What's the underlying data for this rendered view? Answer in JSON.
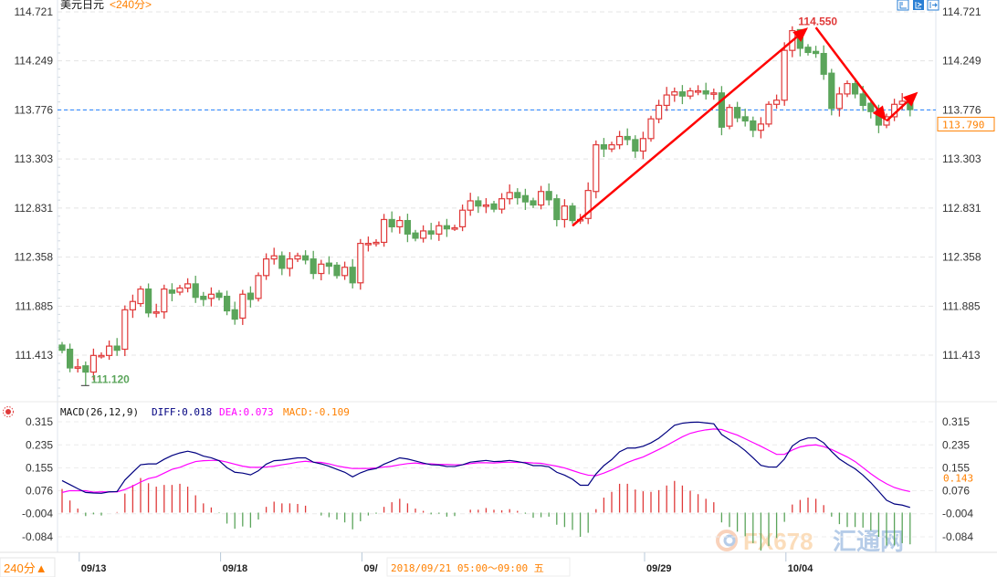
{
  "header": {
    "symbol": "美元日元",
    "period": "<240分>"
  },
  "toolbar_icons": [
    "zoom-range-icon",
    "draw-tool-icon",
    "exit-icon"
  ],
  "footer": {
    "period_button": "240分▲",
    "tooltip": "2018/09/21 05:00～09:00 五"
  },
  "watermark": "FX678 汇通网",
  "colors": {
    "up": "#e03a3a",
    "down": "#5ba55b",
    "diff": "#000080",
    "dea": "#ff00ff",
    "macd_label": "#ff8000",
    "price_line": "#1e7fff",
    "annotation": "#ff0000"
  },
  "chart_data": {
    "type": "candlestick",
    "title": "美元日元 <240分>",
    "y_ticks": [
      "114.721",
      "114.249",
      "113.776",
      "113.303",
      "112.831",
      "112.358",
      "111.885",
      "111.413"
    ],
    "ylim": [
      111.413,
      114.721
    ],
    "x_tick_labels": [
      {
        "label": "09/13",
        "index": 3
      },
      {
        "label": "09/18",
        "index": 21
      },
      {
        "label": "09/",
        "index": 39
      },
      {
        "label": "09/29",
        "index": 75
      },
      {
        "label": "10/04",
        "index": 93
      }
    ],
    "reference_line": {
      "value": "113.776"
    },
    "last_price": "113.790",
    "high_label": {
      "text": "114.550",
      "index": 94,
      "value": 114.55
    },
    "low_label": {
      "text": "111.120",
      "index": 3,
      "value": 111.12
    },
    "annotations": [
      {
        "type": "arrow",
        "from": {
          "index": 65,
          "value": 112.66
        },
        "to": {
          "index": 95,
          "value": 114.57
        }
      },
      {
        "type": "arrow",
        "from": {
          "index": 96,
          "value": 114.57
        },
        "to": {
          "index": 105,
          "value": 113.67
        }
      },
      {
        "type": "arrow",
        "from": {
          "index": 105,
          "value": 113.67
        },
        "to": {
          "index": 109,
          "value": 113.95
        }
      }
    ],
    "candles_oc": [
      [
        111.51,
        111.46
      ],
      [
        111.47,
        111.29
      ],
      [
        111.3,
        111.3
      ],
      [
        111.31,
        111.25
      ],
      [
        111.25,
        111.41
      ],
      [
        111.41,
        111.41
      ],
      [
        111.41,
        111.5
      ],
      [
        111.5,
        111.46
      ],
      [
        111.47,
        111.85
      ],
      [
        111.85,
        111.93
      ],
      [
        111.91,
        112.05
      ],
      [
        112.05,
        111.82
      ],
      [
        111.83,
        111.83
      ],
      [
        111.83,
        112.05
      ],
      [
        112.04,
        112.01
      ],
      [
        112.02,
        112.06
      ],
      [
        112.06,
        112.1
      ],
      [
        112.1,
        111.97
      ],
      [
        111.98,
        111.95
      ],
      [
        111.96,
        112.0
      ],
      [
        112.01,
        111.97
      ],
      [
        111.98,
        111.84
      ],
      [
        111.85,
        111.76
      ],
      [
        111.77,
        112.0
      ],
      [
        112.01,
        111.95
      ],
      [
        111.96,
        112.18
      ],
      [
        112.18,
        112.34
      ],
      [
        112.34,
        112.37
      ],
      [
        112.37,
        112.25
      ],
      [
        112.25,
        112.34
      ],
      [
        112.34,
        112.37
      ],
      [
        112.37,
        112.33
      ],
      [
        112.34,
        112.2
      ],
      [
        112.2,
        112.29
      ],
      [
        112.3,
        112.27
      ],
      [
        112.28,
        112.18
      ],
      [
        112.18,
        112.26
      ],
      [
        112.26,
        112.11
      ],
      [
        112.11,
        112.49
      ],
      [
        112.49,
        112.49
      ],
      [
        112.49,
        112.5
      ],
      [
        112.5,
        112.72
      ],
      [
        112.72,
        112.65
      ],
      [
        112.65,
        112.71
      ],
      [
        112.71,
        112.58
      ],
      [
        112.59,
        112.54
      ],
      [
        112.54,
        112.61
      ],
      [
        112.61,
        112.58
      ],
      [
        112.58,
        112.66
      ],
      [
        112.66,
        112.63
      ],
      [
        112.64,
        112.64
      ],
      [
        112.65,
        112.81
      ],
      [
        112.81,
        112.9
      ],
      [
        112.9,
        112.85
      ],
      [
        112.86,
        112.86
      ],
      [
        112.87,
        112.82
      ],
      [
        112.82,
        112.92
      ],
      [
        112.92,
        112.98
      ],
      [
        112.98,
        112.93
      ],
      [
        112.95,
        112.89
      ],
      [
        112.9,
        112.86
      ],
      [
        112.86,
        112.99
      ],
      [
        112.99,
        112.91
      ],
      [
        112.92,
        112.72
      ],
      [
        112.72,
        112.85
      ],
      [
        112.85,
        112.71
      ],
      [
        112.72,
        112.72
      ],
      [
        112.73,
        113.0
      ],
      [
        112.99,
        113.44
      ],
      [
        113.44,
        113.4
      ],
      [
        113.4,
        113.44
      ],
      [
        113.44,
        113.52
      ],
      [
        113.52,
        113.49
      ],
      [
        113.49,
        113.38
      ],
      [
        113.38,
        113.5
      ],
      [
        113.5,
        113.69
      ],
      [
        113.69,
        113.82
      ],
      [
        113.82,
        113.92
      ],
      [
        113.92,
        113.95
      ],
      [
        113.95,
        113.91
      ],
      [
        113.91,
        113.96
      ],
      [
        113.96,
        113.96
      ],
      [
        113.96,
        113.93
      ],
      [
        113.94,
        113.94
      ],
      [
        113.94,
        113.61
      ],
      [
        113.62,
        113.8
      ],
      [
        113.8,
        113.7
      ],
      [
        113.71,
        113.67
      ],
      [
        113.67,
        113.58
      ],
      [
        113.58,
        113.64
      ],
      [
        113.64,
        113.83
      ],
      [
        113.83,
        113.87
      ],
      [
        113.87,
        114.35
      ],
      [
        114.35,
        114.54
      ],
      [
        114.55,
        114.37
      ],
      [
        114.38,
        114.33
      ],
      [
        114.34,
        114.32
      ],
      [
        114.32,
        114.12
      ],
      [
        114.13,
        113.79
      ],
      [
        113.79,
        113.93
      ],
      [
        113.93,
        114.03
      ],
      [
        114.03,
        113.93
      ],
      [
        113.93,
        113.82
      ],
      [
        113.84,
        113.76
      ],
      [
        113.76,
        113.63
      ],
      [
        113.63,
        113.71
      ],
      [
        113.71,
        113.83
      ],
      [
        113.83,
        113.86
      ],
      [
        113.86,
        113.78
      ]
    ],
    "macd": {
      "title": "MACD(26,12,9)",
      "diff_label": "DIFF:0.018",
      "dea_label": "DEA:0.073",
      "macd_label": "MACD:-0.109",
      "y_ticks": [
        "0.315",
        "0.235",
        "0.155",
        "0.076",
        "-0.004",
        "-0.084"
      ],
      "ylim": [
        -0.084,
        0.315
      ],
      "right_marker": "0.143",
      "diff": [
        0.111,
        0.097,
        0.083,
        0.07,
        0.068,
        0.067,
        0.072,
        0.073,
        0.113,
        0.14,
        0.166,
        0.169,
        0.169,
        0.185,
        0.198,
        0.207,
        0.213,
        0.207,
        0.196,
        0.19,
        0.18,
        0.156,
        0.14,
        0.137,
        0.131,
        0.145,
        0.168,
        0.18,
        0.182,
        0.186,
        0.19,
        0.19,
        0.175,
        0.169,
        0.161,
        0.15,
        0.14,
        0.124,
        0.138,
        0.148,
        0.153,
        0.168,
        0.179,
        0.19,
        0.186,
        0.179,
        0.172,
        0.166,
        0.165,
        0.16,
        0.16,
        0.166,
        0.175,
        0.178,
        0.181,
        0.177,
        0.178,
        0.181,
        0.177,
        0.172,
        0.163,
        0.163,
        0.159,
        0.14,
        0.13,
        0.116,
        0.095,
        0.095,
        0.134,
        0.163,
        0.184,
        0.211,
        0.224,
        0.224,
        0.23,
        0.242,
        0.258,
        0.28,
        0.303,
        0.31,
        0.313,
        0.314,
        0.311,
        0.308,
        0.271,
        0.253,
        0.236,
        0.215,
        0.19,
        0.164,
        0.158,
        0.158,
        0.186,
        0.231,
        0.25,
        0.259,
        0.259,
        0.242,
        0.212,
        0.186,
        0.168,
        0.152,
        0.13,
        0.104,
        0.074,
        0.043,
        0.03,
        0.026,
        0.018
      ],
      "dea": [
        0.07,
        0.076,
        0.076,
        0.076,
        0.071,
        0.072,
        0.072,
        0.072,
        0.08,
        0.092,
        0.106,
        0.118,
        0.124,
        0.137,
        0.15,
        0.157,
        0.168,
        0.177,
        0.18,
        0.181,
        0.181,
        0.175,
        0.168,
        0.161,
        0.157,
        0.157,
        0.158,
        0.161,
        0.166,
        0.17,
        0.175,
        0.178,
        0.175,
        0.174,
        0.169,
        0.162,
        0.157,
        0.153,
        0.153,
        0.153,
        0.155,
        0.158,
        0.161,
        0.166,
        0.17,
        0.172,
        0.169,
        0.169,
        0.167,
        0.167,
        0.166,
        0.166,
        0.17,
        0.173,
        0.173,
        0.172,
        0.174,
        0.175,
        0.174,
        0.174,
        0.172,
        0.171,
        0.166,
        0.161,
        0.155,
        0.146,
        0.137,
        0.13,
        0.128,
        0.137,
        0.148,
        0.161,
        0.174,
        0.184,
        0.193,
        0.206,
        0.219,
        0.233,
        0.248,
        0.263,
        0.275,
        0.282,
        0.287,
        0.29,
        0.288,
        0.278,
        0.269,
        0.256,
        0.243,
        0.23,
        0.216,
        0.202,
        0.202,
        0.217,
        0.228,
        0.233,
        0.235,
        0.229,
        0.219,
        0.206,
        0.193,
        0.177,
        0.156,
        0.135,
        0.116,
        0.1,
        0.087,
        0.079,
        0.073
      ]
    }
  }
}
